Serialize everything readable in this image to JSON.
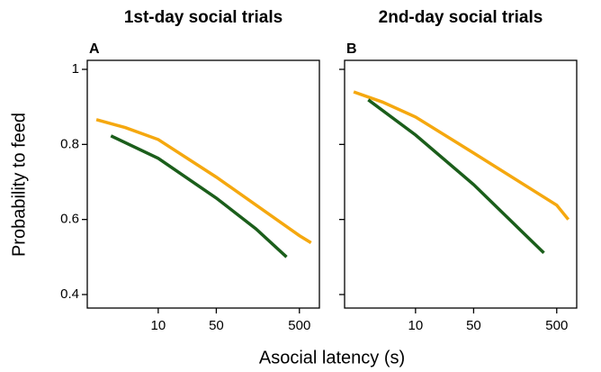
{
  "ylabel": "Probability to feed",
  "xlabel": "Asocial latency (s)",
  "chart_data": [
    {
      "type": "line",
      "title": "1st-day social trials",
      "panel": "A",
      "xscale": "log",
      "xlim": [
        1.4,
        870
      ],
      "ylim": [
        0.364,
        1.024
      ],
      "xticks": [
        10,
        50,
        500
      ],
      "yticks": [
        0.4,
        0.6,
        0.8,
        1
      ],
      "ytick_labels": true,
      "series": [
        {
          "color": "#f5a80f",
          "x": [
            1.8,
            4,
            10,
            50,
            500,
            690
          ],
          "values": [
            0.866,
            0.845,
            0.813,
            0.713,
            0.557,
            0.538
          ]
        },
        {
          "color": "#1b5e1b",
          "x": [
            2.7,
            10,
            50,
            150,
            350
          ],
          "values": [
            0.823,
            0.763,
            0.657,
            0.575,
            0.5
          ]
        }
      ]
    },
    {
      "type": "line",
      "title": "2nd-day social trials",
      "panel": "B",
      "xscale": "log",
      "xlim": [
        1.4,
        870
      ],
      "ylim": [
        0.364,
        1.024
      ],
      "xticks": [
        10,
        50,
        500
      ],
      "yticks": [
        0.4,
        0.6,
        0.8,
        1
      ],
      "ytick_labels": false,
      "series": [
        {
          "color": "#f5a80f",
          "x": [
            1.8,
            4,
            10,
            50,
            500,
            690
          ],
          "values": [
            0.94,
            0.913,
            0.873,
            0.777,
            0.638,
            0.6
          ]
        },
        {
          "color": "#1b5e1b",
          "x": [
            2.7,
            10,
            50,
            150,
            350
          ],
          "values": [
            0.919,
            0.825,
            0.693,
            0.59,
            0.511
          ]
        }
      ]
    }
  ]
}
